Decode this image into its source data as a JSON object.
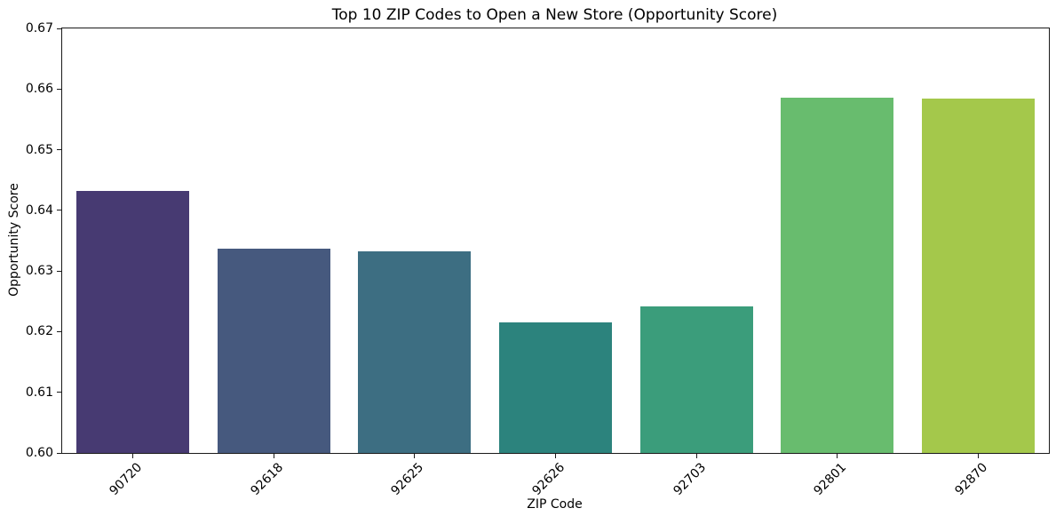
{
  "chart_data": {
    "type": "bar",
    "title": "Top 10 ZIP Codes to Open a New Store (Opportunity Score)",
    "xlabel": "ZIP Code",
    "ylabel": "Opportunity Score",
    "categories": [
      "90720",
      "92618",
      "92625",
      "92626",
      "92703",
      "92801",
      "92870"
    ],
    "values": [
      0.6432,
      0.6337,
      0.6332,
      0.6216,
      0.6241,
      0.6586,
      0.6585
    ],
    "bar_colors": [
      "#473a72",
      "#46597e",
      "#3d6e82",
      "#2c837d",
      "#3b9d7b",
      "#68bc6e",
      "#a4c84b"
    ],
    "palette_name": "viridis",
    "ylim": [
      0.6,
      0.67
    ],
    "yticks": [
      0.6,
      0.61,
      0.62,
      0.63,
      0.64,
      0.65,
      0.66,
      0.67
    ],
    "ytick_labels": [
      "0.60",
      "0.61",
      "0.62",
      "0.63",
      "0.64",
      "0.65",
      "0.66",
      "0.67"
    ],
    "x_tick_rotation_deg": 45,
    "bar_width_frac": 0.8,
    "grid": false,
    "legend": null,
    "background_color": "#ffffff",
    "spine_color": "#1a1a1a"
  }
}
